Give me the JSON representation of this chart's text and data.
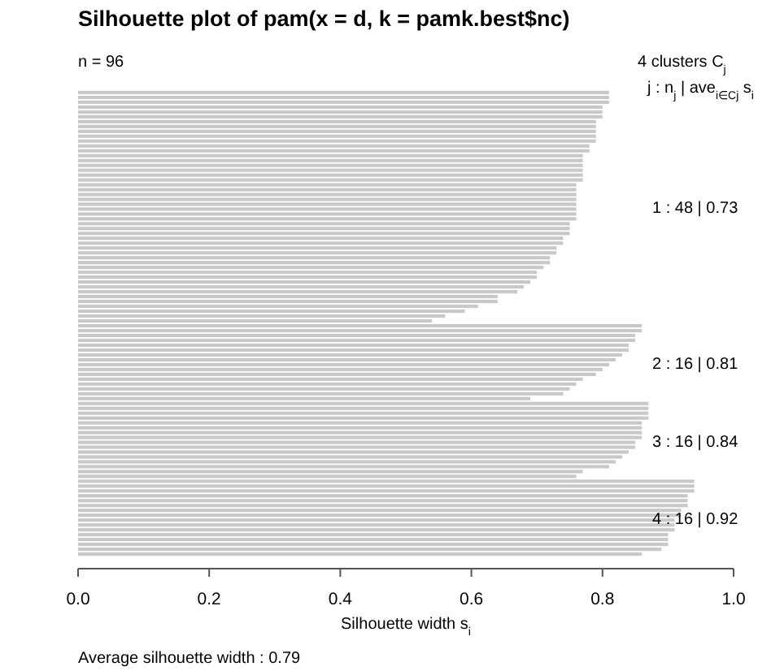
{
  "chart_data": {
    "type": "bar",
    "orientation": "horizontal",
    "title": "Silhouette plot of pam(x = d, k = pamk.best$nc)",
    "xlabel": "Silhouette width s$_{i}$",
    "annotations": [
      "n = 96",
      "4  clusters  C$_{j}$",
      "j :  n$_{j}$ | ave$_{i∈Cj}$ s$_{i}$",
      "1 :  48 | 0.73",
      "2 :  16 | 0.81",
      "3 :  16 | 0.84",
      "4 :  16 | 0.92",
      "Average silhouette width :  0.79"
    ],
    "categories": [
      null,
      null,
      null,
      null,
      null,
      null,
      null,
      null,
      null,
      null,
      null,
      null,
      null,
      null,
      null,
      null,
      null,
      null,
      null,
      null,
      null,
      null,
      null,
      null,
      null,
      null,
      null,
      null,
      null,
      null,
      null,
      null,
      null,
      null,
      null,
      null,
      null,
      null,
      null,
      null,
      null,
      null,
      null,
      null,
      null,
      null,
      null,
      null,
      null,
      null,
      null,
      null,
      null,
      null,
      null,
      null,
      null,
      null,
      null,
      null,
      null,
      null,
      null,
      null,
      null,
      null,
      null,
      null,
      null,
      null,
      null,
      null,
      null,
      null,
      null,
      null,
      null,
      null,
      null,
      null,
      null,
      null,
      null,
      null,
      null,
      null,
      null,
      null,
      null,
      null,
      null,
      null,
      null,
      null,
      null,
      null
    ],
    "color": "#c8c8c8",
    "values": [
      0.81,
      0.81,
      0.81,
      0.8,
      0.8,
      0.8,
      0.79,
      0.79,
      0.79,
      0.79,
      0.79,
      0.78,
      0.78,
      0.77,
      0.77,
      0.77,
      0.77,
      0.77,
      0.77,
      0.76,
      0.76,
      0.76,
      0.76,
      0.76,
      0.76,
      0.76,
      0.76,
      0.75,
      0.75,
      0.75,
      0.74,
      0.74,
      0.73,
      0.73,
      0.72,
      0.72,
      0.71,
      0.7,
      0.7,
      0.69,
      0.68,
      0.67,
      0.64,
      0.64,
      0.61,
      0.59,
      0.56,
      0.54,
      0.86,
      0.86,
      0.85,
      0.85,
      0.84,
      0.84,
      0.83,
      0.82,
      0.81,
      0.8,
      0.79,
      0.77,
      0.76,
      0.75,
      0.74,
      0.69,
      0.87,
      0.87,
      0.87,
      0.87,
      0.86,
      0.86,
      0.86,
      0.86,
      0.85,
      0.85,
      0.84,
      0.83,
      0.82,
      0.81,
      0.77,
      0.76,
      0.94,
      0.94,
      0.94,
      0.93,
      0.93,
      0.93,
      0.92,
      0.92,
      0.91,
      0.91,
      0.91,
      0.9,
      0.9,
      0.9,
      0.89,
      0.86
    ],
    "xlim": [
      0,
      1
    ],
    "xticks": [
      {
        "value": 0,
        "label": "0.0"
      },
      {
        "value": 0.2,
        "label": "0.2"
      },
      {
        "value": 0.4,
        "label": "0.4"
      },
      {
        "value": 0.6,
        "label": "0.6"
      },
      {
        "value": 0.8,
        "label": "0.8"
      },
      {
        "value": 1,
        "label": "1.0"
      }
    ]
  }
}
